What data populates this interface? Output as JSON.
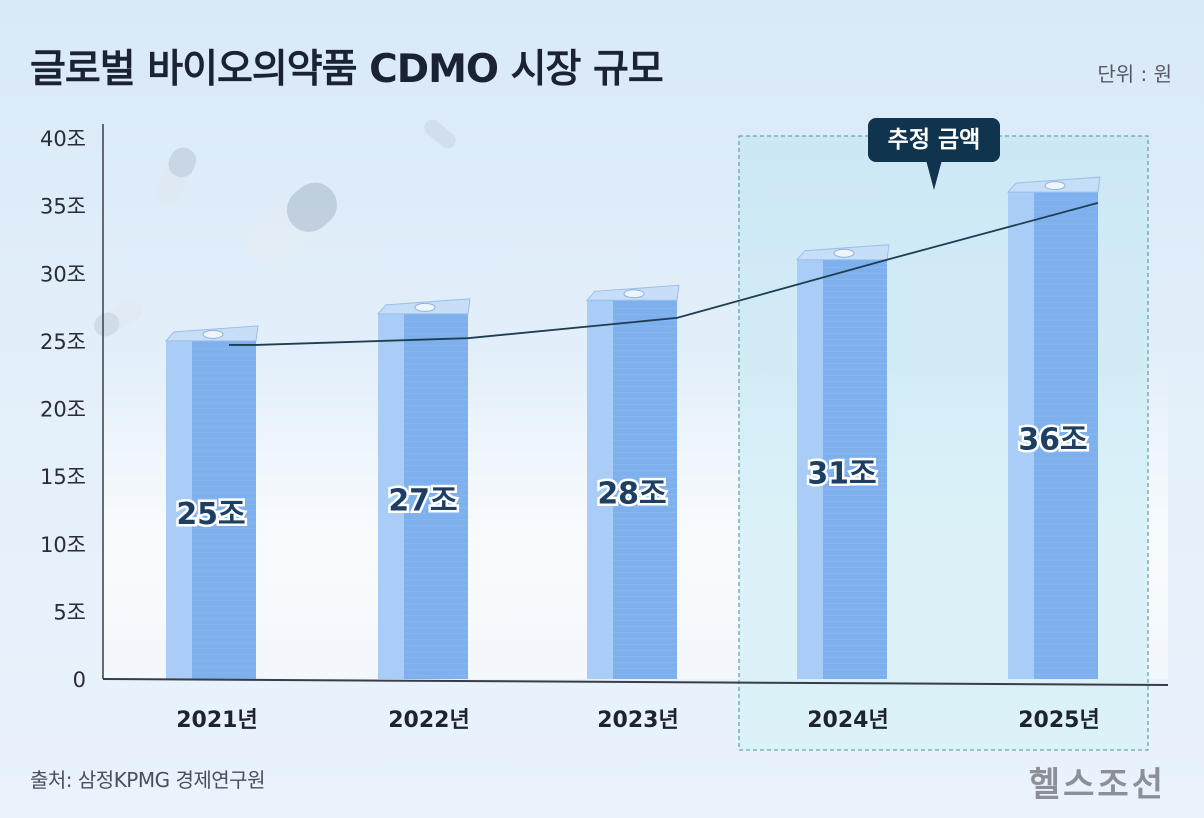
{
  "title": "글로벌 바이오의약품 CDMO 시장 규모",
  "unit_label": "단위 : 원",
  "estimate_label": "추정 금액",
  "source": "출처: 삼정KPMG 경제연구원",
  "brand": "헬스조선",
  "colors": {
    "bar_front": "#7fb0ee",
    "bar_side": "#a9cdf6",
    "bar_top": "#c6def8",
    "badge": "#10344d",
    "line": "#1e3e52",
    "estimate_box": "#cfeef6",
    "dashed_border": "#5fa8b0",
    "axis": "#3a3d44"
  },
  "chart_data": {
    "type": "bar",
    "categories": [
      "2021년",
      "2022년",
      "2023년",
      "2024년",
      "2025년"
    ],
    "values": [
      25,
      27,
      28,
      31,
      36
    ],
    "value_labels": [
      "25조",
      "27조",
      "28조",
      "31조",
      "36조"
    ],
    "trend_line": [
      24.7,
      25.2,
      26.7,
      31.0,
      35.2
    ],
    "ylim": [
      0,
      40
    ],
    "yticks": [
      0,
      5,
      10,
      15,
      20,
      25,
      30,
      35,
      40
    ],
    "ytick_labels": [
      "0",
      "5조",
      "10조",
      "15조",
      "20조",
      "25조",
      "30조",
      "35조",
      "40조"
    ],
    "estimated_categories": [
      "2024년",
      "2025년"
    ],
    "grid": false,
    "legend": "none"
  }
}
